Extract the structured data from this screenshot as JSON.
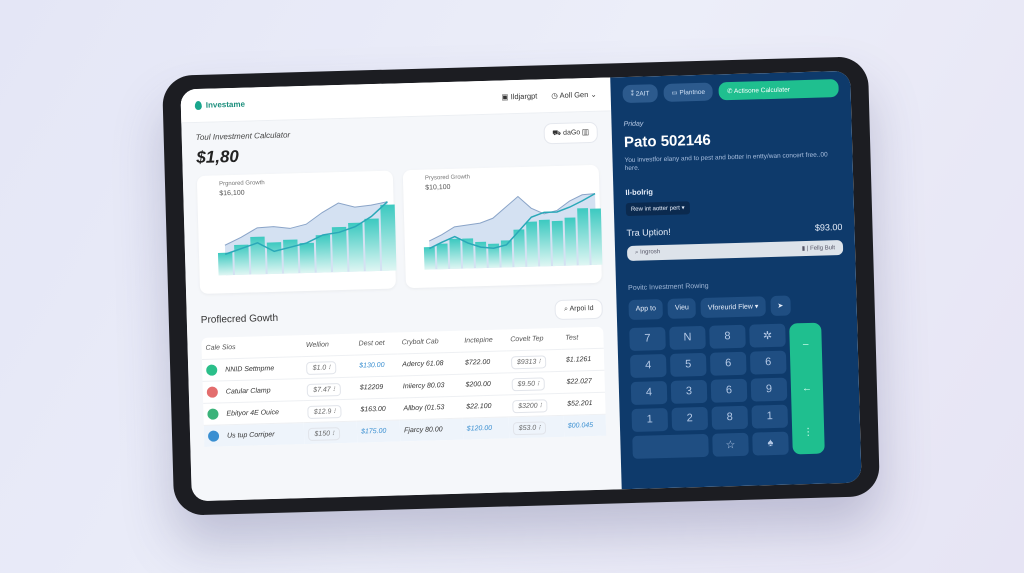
{
  "header": {
    "logo": "Investame",
    "item1": "Ildjargpt",
    "item2": "Aoll Gen"
  },
  "summary": {
    "title": "Toul Investment Calculator",
    "value": "$1,80",
    "button": "daGo"
  },
  "charts_text": [
    {
      "label": "Prgnored Growth",
      "value": "$16,100"
    },
    {
      "label": "Prysored Growth",
      "value": "$10,100"
    }
  ],
  "chart_data": [
    {
      "type": "bar",
      "bars": [
        3,
        4,
        5,
        4.2,
        4.5,
        4,
        5,
        6,
        6.5,
        7,
        8.8
      ],
      "area": [
        4,
        5,
        6.2,
        6.3,
        6,
        6.5,
        8,
        9.2,
        8.6,
        8.8,
        9.2
      ],
      "line": [
        2.8,
        3.5,
        4.2,
        3,
        3.5,
        4,
        5,
        5.3,
        6,
        7.3,
        9.2
      ]
    },
    {
      "type": "bar",
      "bars": [
        3,
        3.4,
        4,
        4,
        3.5,
        3.2,
        3.6,
        5,
        6,
        6.2,
        6,
        6.4,
        7.6,
        7.5
      ],
      "area": [
        3.8,
        4.6,
        5.6,
        5.8,
        6,
        6.6,
        8,
        9.4,
        7.8,
        7,
        7.4,
        8.6,
        9.4,
        9.5
      ],
      "line": [
        2.8,
        3.6,
        4.3,
        3.4,
        2.8,
        2.6,
        3,
        4.8,
        6.6,
        7.2,
        7.2,
        7.8,
        8.6,
        9.5
      ]
    }
  ],
  "table": {
    "title": "Proflecred Gowth",
    "action": "Arpoi Id",
    "columns": [
      "Cale Sios",
      "Wellion",
      "Dest oet",
      "Crybolt Cab",
      "Inctepine",
      "Covelt Tep",
      "Test"
    ],
    "rows": [
      {
        "name": "NNID Settnpme",
        "color": "#2bbf8a",
        "c1": "$1.0",
        "c2": "$130.00",
        "c3": "Adercy 61.08",
        "c4": "$722.00",
        "c5": "$9313",
        "c6": "$1.1261"
      },
      {
        "name": "Catular Clamp",
        "color": "#e36d6d",
        "c1": "$7.47",
        "c2": "$12209",
        "c3": "Iniiercy 80.03",
        "c4": "$200.00",
        "c5": "$9.50",
        "c6": "$22.027"
      },
      {
        "name": "Ebityor 4E Ouice",
        "color": "#3bb37a",
        "c1": "$12.9",
        "c2": "$163.00",
        "c3": "Allboy (01.53",
        "c4": "$22.100",
        "c5": "$3200",
        "c6": "$52.201"
      },
      {
        "name": "Us tup Corriper",
        "color": "#3a8fd1",
        "c1": "$150",
        "c2": "$175.00",
        "c3": "Fjarcy 80.00",
        "c4": "$120.00",
        "c5": "$53.0",
        "c6": "$00.045"
      }
    ]
  },
  "panel": {
    "btn1": "2AIT",
    "btn2": "Plantnoe",
    "btn3": "Actisone Calculater",
    "day": "Priday",
    "headline": "Pato 502146",
    "desc": "You investfor elany and to pest and botter in entty/wan concert free..00 here.",
    "section": "Il-bolrig",
    "dropdown": "Rew int aotter pert ▾",
    "option_label": "Tra Uption!",
    "option_value": "$93.00",
    "input_placeholder": "Ingrosh",
    "input_right": "Fellg Bult",
    "sub": "Povitc Investment Rowing",
    "tabs": [
      "App to",
      "Vieu",
      "Vforeurid Flew ▾",
      "➤"
    ],
    "keys": [
      "7",
      "N",
      "8",
      "✲",
      "4",
      "5",
      "6",
      "6",
      "4",
      "3",
      "6",
      "9",
      "1",
      "2",
      "8",
      "1",
      "",
      "☆",
      "♠"
    ],
    "side_keys": [
      "–",
      "←",
      "⋮"
    ]
  },
  "colors": {
    "accent": "#1fbf8f",
    "panel": "#0e3a6b",
    "teal": "#3cc9c0"
  }
}
